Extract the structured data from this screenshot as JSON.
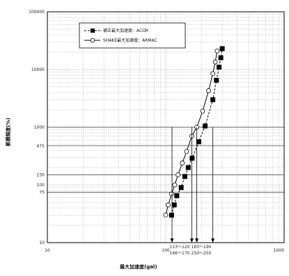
{
  "chart_data": {
    "type": "scatter",
    "title": "",
    "xlabel": "最大加速度(gal)",
    "ylabel": "累積頻度(%)",
    "xscale": "log",
    "yscale": "log",
    "xlim": [
      10,
      1000
    ],
    "ylim": [
      10,
      100000
    ],
    "grid": true,
    "legend_position": "top-left",
    "x_tick_labels": [
      {
        "value": 10,
        "label": "10"
      },
      {
        "value": 100,
        "label": "100"
      },
      {
        "value": 1000,
        "label": "1000"
      }
    ],
    "y_tick_labels": [
      {
        "value": 10,
        "label": "10"
      },
      {
        "value": 75,
        "label": "75"
      },
      {
        "value": 100,
        "label": "100"
      },
      {
        "value": 150,
        "label": "150"
      },
      {
        "value": 475,
        "label": "475"
      },
      {
        "value": 1000,
        "label": "1000"
      },
      {
        "value": 10000,
        "label": "10000"
      },
      {
        "value": 100000,
        "label": "100000"
      }
    ],
    "series": [
      {
        "name": "補正最大加速度：ACOR",
        "marker": "filled-square",
        "line": "dashed",
        "color": "#000000",
        "points": [
          {
            "x": 112,
            "y": 30
          },
          {
            "x": 118,
            "y": 45
          },
          {
            "x": 124,
            "y": 65
          },
          {
            "x": 135,
            "y": 90
          },
          {
            "x": 145,
            "y": 140
          },
          {
            "x": 155,
            "y": 200
          },
          {
            "x": 167,
            "y": 290
          },
          {
            "x": 190,
            "y": 560
          },
          {
            "x": 215,
            "y": 1050
          },
          {
            "x": 250,
            "y": 3000
          },
          {
            "x": 268,
            "y": 6500
          },
          {
            "x": 282,
            "y": 11000
          },
          {
            "x": 292,
            "y": 16000
          },
          {
            "x": 300,
            "y": 23000
          }
        ]
      },
      {
        "name": "SHAKE最大加速度：ARMAC",
        "marker": "open-circle",
        "line": "solid",
        "color": "#000000",
        "points": [
          {
            "x": 100,
            "y": 30
          },
          {
            "x": 105,
            "y": 45
          },
          {
            "x": 112,
            "y": 70
          },
          {
            "x": 119,
            "y": 100
          },
          {
            "x": 127,
            "y": 150
          },
          {
            "x": 138,
            "y": 240
          },
          {
            "x": 150,
            "y": 380
          },
          {
            "x": 166,
            "y": 700
          },
          {
            "x": 183,
            "y": 1000
          },
          {
            "x": 205,
            "y": 1900
          },
          {
            "x": 230,
            "y": 4300
          },
          {
            "x": 250,
            "y": 8500
          },
          {
            "x": 262,
            "y": 13500
          },
          {
            "x": 272,
            "y": 21000
          }
        ]
      }
    ],
    "annotations": [
      {
        "label": "113～120",
        "x": 113
      },
      {
        "label": "166～170",
        "x": 166
      },
      {
        "label": "183～190",
        "x": 183
      },
      {
        "label": "250～250",
        "x": 250
      }
    ]
  }
}
